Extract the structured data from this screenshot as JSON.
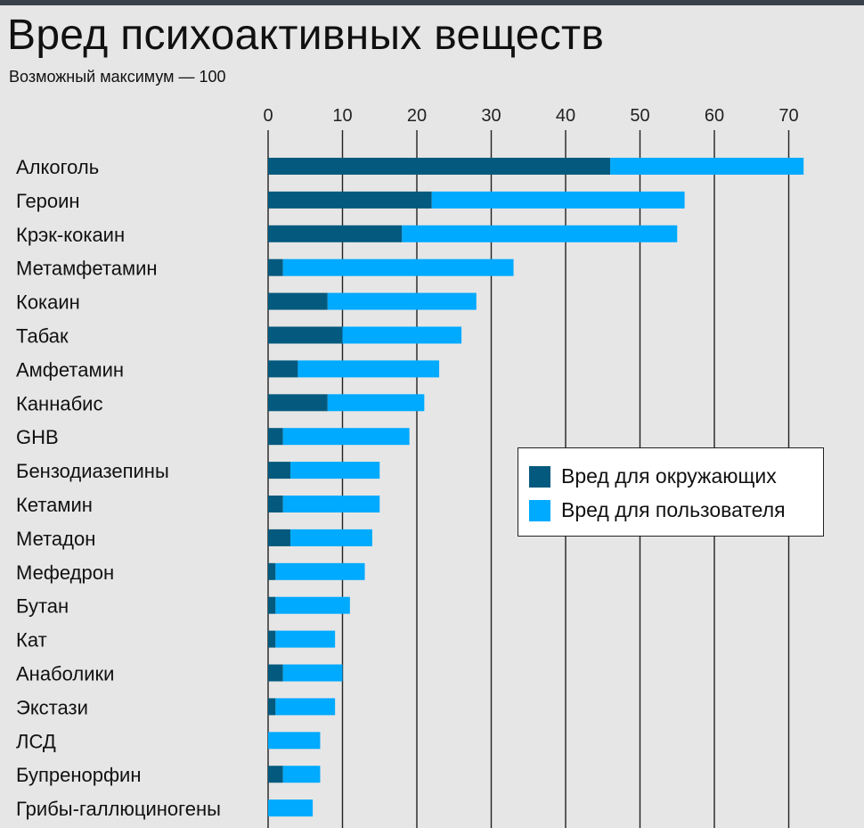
{
  "chart_data": {
    "type": "bar",
    "orientation": "horizontal",
    "stacked": true,
    "title": "Вред психоактивных веществ",
    "subtitle": "Возможный максимум — 100",
    "xlim": [
      0,
      80
    ],
    "x_ticks": [
      0,
      10,
      20,
      30,
      40,
      50,
      60,
      70
    ],
    "categories": [
      "Алкоголь",
      "Героин",
      "Крэк-кокаин",
      "Метамфетамин",
      "Кокаин",
      "Табак",
      "Амфетамин",
      "Каннабис",
      "GHB",
      "Бензодиазепины",
      "Кетамин",
      "Метадон",
      "Мефедрон",
      "Бутан",
      "Кат",
      "Анаболики",
      "Экстази",
      "ЛСД",
      "Бупренорфин",
      "Грибы-галлюциногены"
    ],
    "series": [
      {
        "name": "Вред для окружающих",
        "color": "#045a7e",
        "values": [
          46,
          22,
          18,
          2,
          8,
          10,
          4,
          8,
          2,
          3,
          2,
          3,
          1,
          1,
          1,
          2,
          1,
          0,
          2,
          0
        ]
      },
      {
        "name": "Вред для пользователя",
        "color": "#00aaff",
        "values": [
          26,
          34,
          37,
          31,
          20,
          16,
          19,
          13,
          17,
          12,
          13,
          11,
          12,
          10,
          8,
          8,
          8,
          7,
          5,
          6
        ]
      }
    ],
    "legend": "middle-right",
    "grid": true
  }
}
